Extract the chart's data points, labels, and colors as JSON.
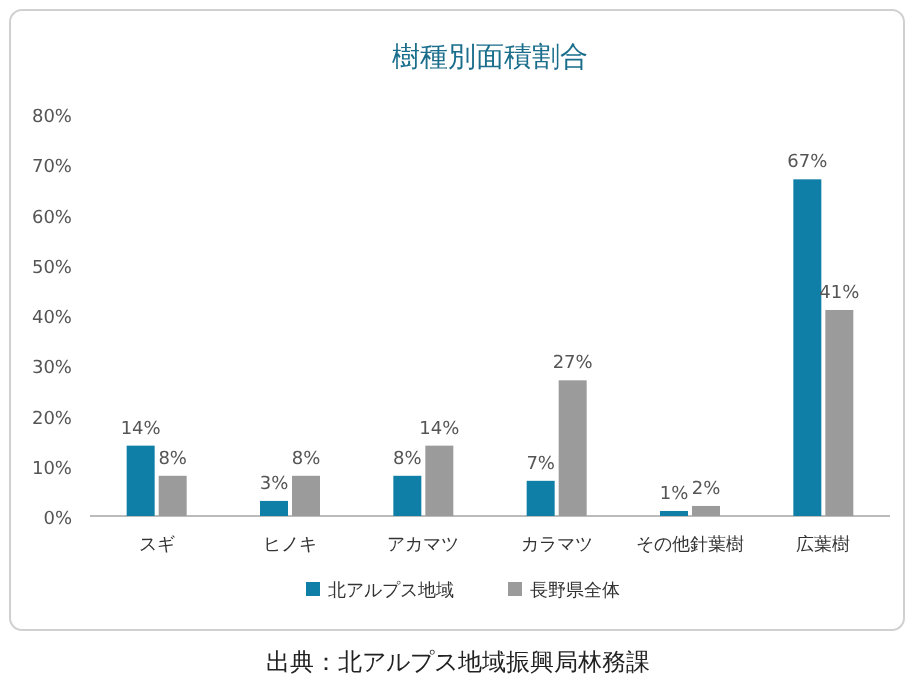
{
  "chart_data": {
    "type": "bar",
    "title": "樹種別面積割合",
    "categories": [
      "スギ",
      "ヒノキ",
      "アカマツ",
      "カラマツ",
      "その他針葉樹",
      "広葉樹"
    ],
    "series": [
      {
        "name": "北アルプス地域",
        "color": "#0f7fa8",
        "values": [
          14,
          3,
          8,
          7,
          1,
          67
        ],
        "value_labels": [
          "14%",
          "3%",
          "8%",
          "7%",
          "1%",
          "67%"
        ]
      },
      {
        "name": "長野県全体",
        "color": "#9b9b9b",
        "values": [
          8,
          8,
          14,
          27,
          2,
          41
        ],
        "value_labels": [
          "8%",
          "8%",
          "14%",
          "27%",
          "2%",
          "41%"
        ]
      }
    ],
    "ylim": [
      0,
      80
    ],
    "yticks": [
      {
        "value": 0,
        "label": "0%"
      },
      {
        "value": 10,
        "label": "10%"
      },
      {
        "value": 20,
        "label": "20%"
      },
      {
        "value": 30,
        "label": "30%"
      },
      {
        "value": 40,
        "label": "40%"
      },
      {
        "value": 50,
        "label": "50%"
      },
      {
        "value": 60,
        "label": "60%"
      },
      {
        "value": 70,
        "label": "70%"
      },
      {
        "value": 80,
        "label": "80%"
      }
    ],
    "legend": "bottom",
    "annotations": [
      "出典：北アルプス地域振興局林務課"
    ]
  }
}
